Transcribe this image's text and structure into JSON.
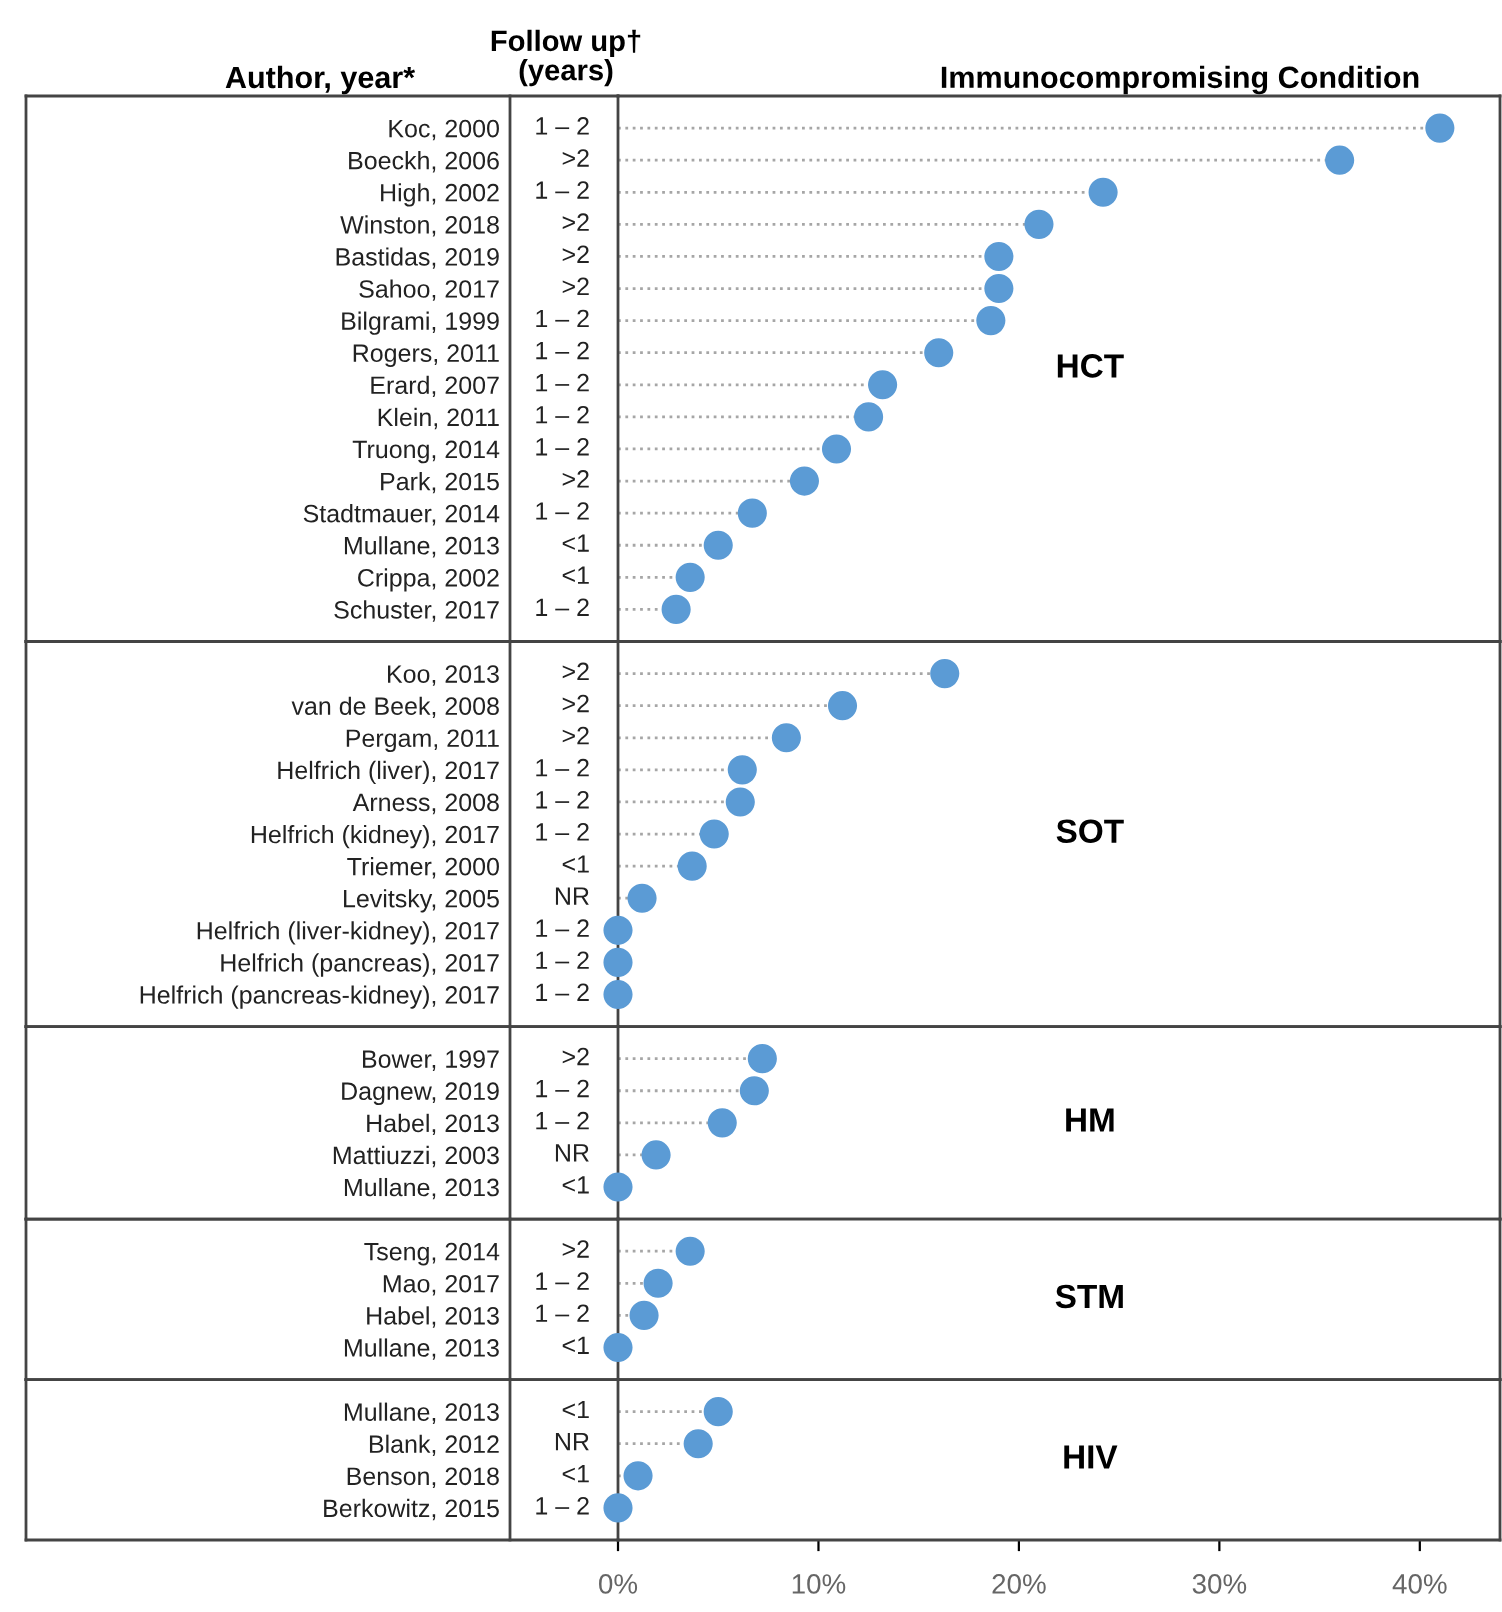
{
  "chart_data": [
    {
      "type": "lollipop",
      "title": "Immunocompromising Condition",
      "ylabel": "Author, year*",
      "y2label": "Follow up†\n(years)",
      "orientation": "horizontal",
      "categories": [
        "Koc, 2000",
        "Boeckh, 2006",
        "High, 2002",
        "Winston, 2018",
        "Bastidas, 2019",
        "Sahoo, 2017",
        "Bilgrami, 1999",
        "Rogers, 2011",
        "Erard, 2007",
        "Klein, 2011",
        "Truong, 2014",
        "Park, 2015",
        "Stadtmauer, 2014",
        "Mullane, 2013",
        "Crippa, 2002",
        "Schuster, 2017"
      ],
      "y2_categories": [
        "1 – 2",
        ">2",
        "1 – 2",
        ">2",
        ">2",
        ">2",
        "1 – 2",
        "1 – 2",
        "1 – 2",
        "1 – 2",
        "1 – 2",
        ">2",
        "1 – 2",
        "<1",
        "<1",
        "1 – 2"
      ],
      "series": [
        {
          "color": "#5b9bd5",
          "values": [
            41.0,
            36.0,
            24.2,
            21.0,
            19.0,
            19.0,
            18.6,
            16.0,
            13.2,
            12.5,
            10.9,
            9.3,
            6.7,
            5.0,
            3.6,
            2.9
          ]
        }
      ],
      "annotations": [
        "HCT"
      ],
      "xlim": [
        0,
        44
      ],
      "tick_labels": "y",
      "marker": "circle",
      "line_style": "dotted"
    },
    {
      "type": "lollipop",
      "categories": [
        "Koo, 2013",
        "van de Beek, 2008",
        "Pergam, 2011",
        "Helfrich (liver), 2017",
        "Arness, 2008",
        "Helfrich (kidney), 2017",
        "Triemer, 2000",
        "Levitsky, 2005",
        "Helfrich (liver-kidney), 2017",
        "Helfrich (pancreas), 2017",
        "Helfrich (pancreas-kidney), 2017"
      ],
      "y2_categories": [
        ">2",
        ">2",
        ">2",
        "1 – 2",
        "1 – 2",
        "1 – 2",
        "<1",
        "NR",
        "1 – 2",
        "1 – 2",
        "1 – 2"
      ],
      "series": [
        {
          "color": "#5b9bd5",
          "values": [
            16.3,
            11.2,
            8.4,
            6.2,
            6.1,
            4.8,
            3.7,
            1.2,
            0,
            0,
            0
          ]
        }
      ],
      "annotations": [
        "SOT"
      ],
      "xlim": [
        0,
        44
      ],
      "orientation": "horizontal",
      "tick_labels": "y",
      "marker": "circle",
      "line_style": "dotted"
    },
    {
      "type": "lollipop",
      "categories": [
        "Bower, 1997",
        "Dagnew, 2019",
        "Habel, 2013",
        "Mattiuzzi, 2003",
        "Mullane, 2013"
      ],
      "y2_categories": [
        ">2",
        "1 – 2",
        "1 – 2",
        "NR",
        "<1"
      ],
      "series": [
        {
          "color": "#5b9bd5",
          "values": [
            7.2,
            6.8,
            5.2,
            1.9,
            0
          ]
        }
      ],
      "annotations": [
        "HM"
      ],
      "xlim": [
        0,
        44
      ],
      "orientation": "horizontal",
      "tick_labels": "y",
      "marker": "circle",
      "line_style": "dotted"
    },
    {
      "type": "lollipop",
      "categories": [
        "Tseng, 2014",
        "Mao, 2017",
        "Habel, 2013",
        "Mullane, 2013"
      ],
      "y2_categories": [
        ">2",
        "1 – 2",
        "1 – 2",
        "<1"
      ],
      "series": [
        {
          "color": "#5b9bd5",
          "values": [
            3.6,
            2.0,
            1.3,
            0
          ]
        }
      ],
      "annotations": [
        "STM"
      ],
      "xlim": [
        0,
        44
      ],
      "orientation": "horizontal",
      "tick_labels": "y",
      "marker": "circle",
      "line_style": "dotted"
    },
    {
      "type": "lollipop",
      "categories": [
        "Mullane, 2013",
        "Blank, 2012",
        "Benson, 2018",
        "Berkowitz, 2015"
      ],
      "y2_categories": [
        "<1",
        "NR",
        "<1",
        "1 – 2"
      ],
      "series": [
        {
          "color": "#5b9bd5",
          "values": [
            5.0,
            4.0,
            1.0,
            0
          ]
        }
      ],
      "annotations": [
        "HIV"
      ],
      "xlim": [
        0,
        44
      ],
      "orientation": "horizontal",
      "xticks": [
        {
          "value": 0,
          "label": "0%"
        },
        {
          "value": 10,
          "label": "10%"
        },
        {
          "value": 20,
          "label": "20%"
        },
        {
          "value": 30,
          "label": "30%"
        },
        {
          "value": 40,
          "label": "40%"
        }
      ],
      "marker": "circle",
      "line_style": "dotted"
    }
  ]
}
